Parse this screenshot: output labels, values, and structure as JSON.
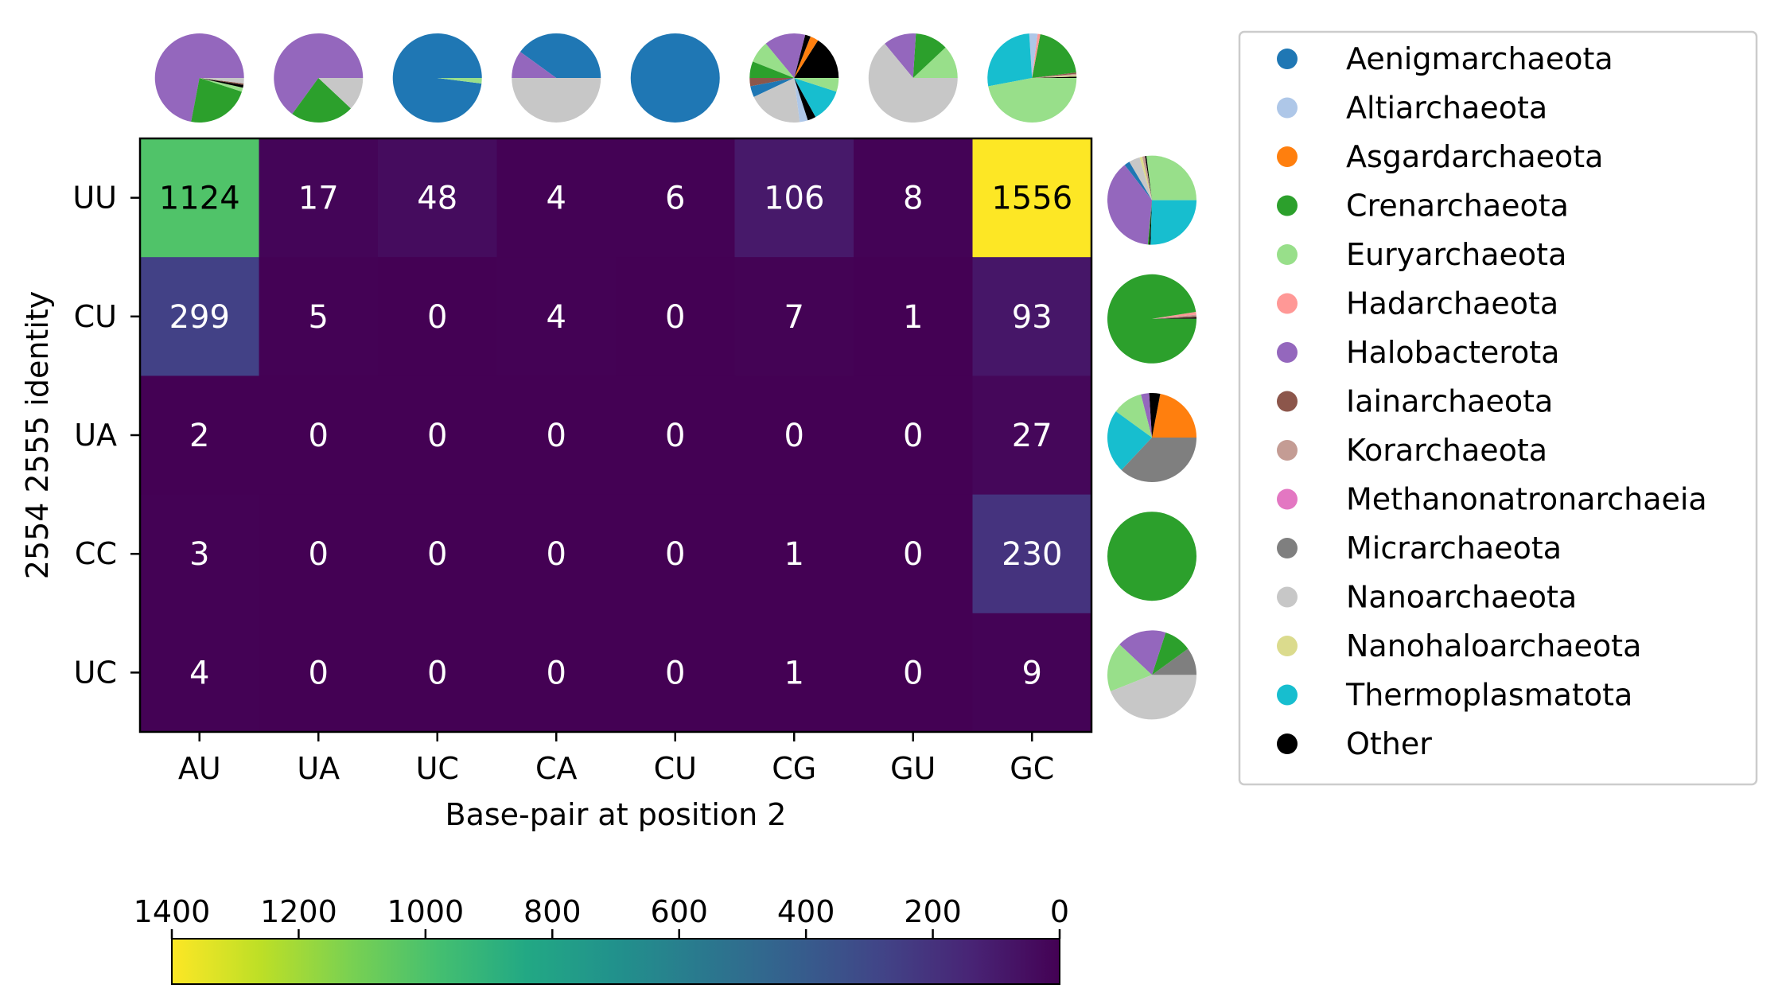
{
  "chart_data": {
    "type": "heatmap",
    "xlabel": "Base-pair at position 2",
    "ylabel": "2554 2555 identity",
    "x_categories": [
      "AU",
      "UA",
      "UC",
      "CA",
      "CU",
      "CG",
      "GU",
      "GC"
    ],
    "y_categories": [
      "UU",
      "CU",
      "UA",
      "CC",
      "UC"
    ],
    "values": [
      [
        1124,
        17,
        48,
        4,
        6,
        106,
        8,
        1556
      ],
      [
        299,
        5,
        0,
        4,
        0,
        7,
        1,
        93
      ],
      [
        2,
        0,
        0,
        0,
        0,
        0,
        0,
        27
      ],
      [
        3,
        0,
        0,
        0,
        0,
        1,
        0,
        230
      ],
      [
        4,
        0,
        0,
        0,
        0,
        1,
        0,
        9
      ]
    ],
    "colormap": "viridis",
    "colorbar": {
      "ticks": [
        "1400",
        "1200",
        "1000",
        "800",
        "600",
        "400",
        "200",
        "0"
      ],
      "range": [
        0,
        1400
      ],
      "orientation": "horizontal",
      "reversed": true,
      "placement": "bottom"
    },
    "legend": {
      "placement": "right",
      "entries": [
        {
          "name": "Aenigmarchaeota",
          "color": "#1f77b4"
        },
        {
          "name": "Altiarchaeota",
          "color": "#aec7e8"
        },
        {
          "name": "Asgardarchaeota",
          "color": "#ff7f0e"
        },
        {
          "name": "Crenarchaeota",
          "color": "#2ca02c"
        },
        {
          "name": "Euryarchaeota",
          "color": "#98df8a"
        },
        {
          "name": "Hadarchaeota",
          "color": "#ff9896"
        },
        {
          "name": "Halobacterota",
          "color": "#9467bd"
        },
        {
          "name": "Iainarchaeota",
          "color": "#8c564b"
        },
        {
          "name": "Korarchaeota",
          "color": "#c49c94"
        },
        {
          "name": "Methanonatronarchaeia",
          "color": "#e377c2"
        },
        {
          "name": "Micrarchaeota",
          "color": "#7f7f7f"
        },
        {
          "name": "Nanoarchaeota",
          "color": "#c7c7c7"
        },
        {
          "name": "Nanohaloarchaeota",
          "color": "#dbdb8d"
        },
        {
          "name": "Thermoplasmatota",
          "color": "#17becf"
        },
        {
          "name": "Other",
          "color": "#000000"
        }
      ]
    },
    "column_pies": [
      [
        {
          "taxon": "Halobacterota",
          "value": 72
        },
        {
          "taxon": "Crenarchaeota",
          "value": 23
        },
        {
          "taxon": "Euryarchaeota",
          "value": 1.5
        },
        {
          "taxon": "Other",
          "value": 1
        },
        {
          "taxon": "Iainarchaeota",
          "value": 0.5
        },
        {
          "taxon": "Nanoarchaeota",
          "value": 2
        }
      ],
      [
        {
          "taxon": "Halobacterota",
          "value": 65
        },
        {
          "taxon": "Crenarchaeota",
          "value": 23
        },
        {
          "taxon": "Nanoarchaeota",
          "value": 12
        }
      ],
      [
        {
          "taxon": "Aenigmarchaeota",
          "value": 98
        },
        {
          "taxon": "Euryarchaeota",
          "value": 2
        }
      ],
      [
        {
          "taxon": "Aenigmarchaeota",
          "value": 40
        },
        {
          "taxon": "Halobacterota",
          "value": 10
        },
        {
          "taxon": "Nanoarchaeota",
          "value": 50
        }
      ],
      [
        {
          "taxon": "Aenigmarchaeota",
          "value": 100
        }
      ],
      [
        {
          "taxon": "Other",
          "value": 16
        },
        {
          "taxon": "Asgardarchaeota",
          "value": 3
        },
        {
          "taxon": "Other",
          "value": 2
        },
        {
          "taxon": "Halobacterota",
          "value": 15
        },
        {
          "taxon": "Euryarchaeota",
          "value": 8
        },
        {
          "taxon": "Crenarchaeota",
          "value": 6
        },
        {
          "taxon": "Iainarchaeota",
          "value": 3
        },
        {
          "taxon": "Aenigmarchaeota",
          "value": 4
        },
        {
          "taxon": "Nanoarchaeota",
          "value": 20
        },
        {
          "taxon": "Altiarchaeota",
          "value": 3
        },
        {
          "taxon": "Other",
          "value": 3
        },
        {
          "taxon": "Thermoplasmatota",
          "value": 12
        },
        {
          "taxon": "Euryarchaeota",
          "value": 5
        }
      ],
      [
        {
          "taxon": "Euryarchaeota",
          "value": 12
        },
        {
          "taxon": "Crenarchaeota",
          "value": 12
        },
        {
          "taxon": "Halobacterota",
          "value": 12
        },
        {
          "taxon": "Nanoarchaeota",
          "value": 64
        }
      ],
      [
        {
          "taxon": "Other",
          "value": 0.5
        },
        {
          "taxon": "Nanohaloarchaeota",
          "value": 0.5
        },
        {
          "taxon": "Korarchaeota",
          "value": 0.5
        },
        {
          "taxon": "Iainarchaeota",
          "value": 0.5
        },
        {
          "taxon": "Crenarchaeota",
          "value": 20
        },
        {
          "taxon": "Hadarchaeota",
          "value": 1
        },
        {
          "taxon": "Altiarchaeota",
          "value": 3
        },
        {
          "taxon": "Thermoplasmatota",
          "value": 27
        },
        {
          "taxon": "Euryarchaeota",
          "value": 47
        }
      ]
    ],
    "row_pies": [
      [
        {
          "taxon": "Euryarchaeota",
          "value": 27
        },
        {
          "taxon": "Other",
          "value": 0.5
        },
        {
          "taxon": "Korarchaeota",
          "value": 1
        },
        {
          "taxon": "Nanohaloarchaeota",
          "value": 1
        },
        {
          "taxon": "Nanoarchaeota",
          "value": 4
        },
        {
          "taxon": "Aenigmarchaeota",
          "value": 2
        },
        {
          "taxon": "Halobacterota",
          "value": 38
        },
        {
          "taxon": "Crenarchaeota",
          "value": 0.5
        },
        {
          "taxon": "Other",
          "value": 0.5
        },
        {
          "taxon": "Thermoplasmatota",
          "value": 25.5
        }
      ],
      [
        {
          "taxon": "Other",
          "value": 0.5
        },
        {
          "taxon": "Iainarchaeota",
          "value": 0.5
        },
        {
          "taxon": "Korarchaeota",
          "value": 0.5
        },
        {
          "taxon": "Hadarchaeota",
          "value": 1
        },
        {
          "taxon": "Crenarchaeota",
          "value": 97.5
        }
      ],
      [
        {
          "taxon": "Asgardarchaeota",
          "value": 22
        },
        {
          "taxon": "Other",
          "value": 4
        },
        {
          "taxon": "Halobacterota",
          "value": 3
        },
        {
          "taxon": "Euryarchaeota",
          "value": 11
        },
        {
          "taxon": "Thermoplasmatota",
          "value": 23
        },
        {
          "taxon": "Micrarchaeota",
          "value": 37
        }
      ],
      [
        {
          "taxon": "Crenarchaeota",
          "value": 100
        }
      ],
      [
        {
          "taxon": "Micrarchaeota",
          "value": 10
        },
        {
          "taxon": "Crenarchaeota",
          "value": 10
        },
        {
          "taxon": "Halobacterota",
          "value": 18
        },
        {
          "taxon": "Euryarchaeota",
          "value": 18
        },
        {
          "taxon": "Nanoarchaeota",
          "value": 44
        }
      ]
    ]
  }
}
